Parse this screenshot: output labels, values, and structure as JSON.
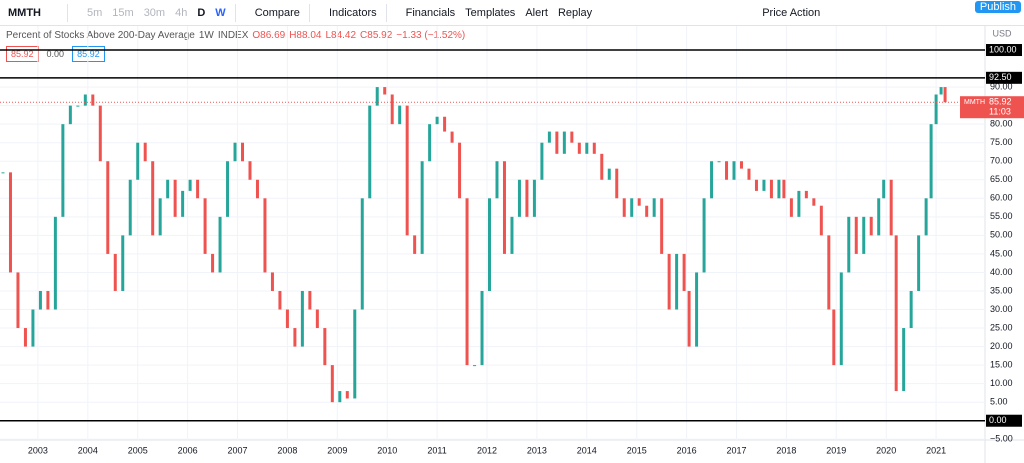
{
  "toolbar": {
    "symbol": "MMTH",
    "intervals": [
      "5m",
      "15m",
      "30m",
      "4h",
      "D",
      "W"
    ],
    "buttons": [
      "Compare",
      "Indicators",
      "Financials",
      "Templates",
      "Alert",
      "Replay",
      "Price Action"
    ],
    "publish": "Publish"
  },
  "legend": {
    "title": "Percent of Stocks Above 200-Day Average",
    "interval": "1W",
    "exchange": "INDEX",
    "ohlc": [
      "O86.69",
      "H88.04",
      "L84.42",
      "C85.92",
      "−1.33 (−1.52%)"
    ],
    "boxes": [
      "85.92",
      "0.00",
      "85.92"
    ]
  },
  "currency": "USD",
  "price_tag": {
    "symbol": "MMTH",
    "value": 85.92,
    "label": "85.92",
    "time": "11:03"
  },
  "hlines": [
    {
      "value": 100,
      "label": "100.00"
    },
    {
      "value": 92.5,
      "label": "92.50"
    },
    {
      "value": 0,
      "label": "0.00"
    }
  ],
  "chart_data": {
    "type": "candles",
    "x": [
      2002.3,
      2002.45,
      2002.6,
      2002.75,
      2002.9,
      2003.05,
      2003.2,
      2003.35,
      2003.5,
      2003.65,
      2003.8,
      2003.95,
      2004.1,
      2004.25,
      2004.4,
      2004.55,
      2004.7,
      2004.85,
      2005.0,
      2005.15,
      2005.3,
      2005.45,
      2005.6,
      2005.75,
      2005.9,
      2006.05,
      2006.2,
      2006.35,
      2006.5,
      2006.65,
      2006.8,
      2006.95,
      2007.1,
      2007.25,
      2007.4,
      2007.55,
      2007.7,
      2007.85,
      2008.0,
      2008.15,
      2008.3,
      2008.45,
      2008.6,
      2008.75,
      2008.9,
      2009.05,
      2009.2,
      2009.35,
      2009.5,
      2009.65,
      2009.8,
      2009.95,
      2010.1,
      2010.25,
      2010.4,
      2010.55,
      2010.7,
      2010.85,
      2011.0,
      2011.15,
      2011.3,
      2011.45,
      2011.6,
      2011.75,
      2011.9,
      2012.05,
      2012.2,
      2012.35,
      2012.5,
      2012.65,
      2012.8,
      2012.95,
      2013.1,
      2013.25,
      2013.4,
      2013.55,
      2013.7,
      2013.85,
      2014.0,
      2014.15,
      2014.3,
      2014.45,
      2014.6,
      2014.75,
      2014.9,
      2015.05,
      2015.2,
      2015.35,
      2015.5,
      2015.65,
      2015.8,
      2015.95,
      2016.05,
      2016.2,
      2016.35,
      2016.5,
      2016.65,
      2016.8,
      2016.95,
      2017.1,
      2017.25,
      2017.4,
      2017.55,
      2017.7,
      2017.85,
      2017.95,
      2018.1,
      2018.25,
      2018.4,
      2018.55,
      2018.7,
      2018.85,
      2018.95,
      2019.1,
      2019.25,
      2019.4,
      2019.55,
      2019.7,
      2019.85,
      2019.95,
      2020.1,
      2020.2,
      2020.35,
      2020.5,
      2020.65,
      2020.8,
      2020.9,
      2021.0,
      2021.1,
      2021.18
    ],
    "series": [
      {
        "name": "MMTH",
        "values": [
          67,
          40,
          25,
          20,
          30,
          35,
          30,
          55,
          80,
          85,
          85,
          88,
          85,
          70,
          45,
          35,
          50,
          65,
          75,
          70,
          50,
          60,
          65,
          55,
          62,
          65,
          60,
          45,
          40,
          55,
          70,
          75,
          70,
          65,
          60,
          40,
          35,
          30,
          25,
          20,
          35,
          30,
          25,
          15,
          5,
          8,
          6,
          30,
          60,
          85,
          90,
          88,
          80,
          85,
          50,
          45,
          70,
          80,
          82,
          78,
          75,
          60,
          15,
          15,
          35,
          60,
          70,
          45,
          55,
          65,
          55,
          65,
          75,
          78,
          72,
          78,
          75,
          72,
          75,
          72,
          65,
          68,
          60,
          55,
          60,
          58,
          55,
          60,
          45,
          30,
          45,
          35,
          20,
          40,
          60,
          70,
          70,
          65,
          70,
          68,
          65,
          62,
          65,
          60,
          65,
          60,
          55,
          62,
          60,
          58,
          50,
          30,
          15,
          40,
          55,
          45,
          55,
          50,
          60,
          65,
          50,
          8,
          25,
          35,
          50,
          60,
          80,
          88,
          90,
          85.92
        ]
      }
    ],
    "up_color": "#26a69a",
    "down_color": "#ef5350",
    "xlim": [
      2002.24,
      2021.98
    ],
    "xticks": [
      2003,
      2004,
      2005,
      2006,
      2007,
      2008,
      2009,
      2010,
      2011,
      2012,
      2013,
      2014,
      2015,
      2016,
      2017,
      2018,
      2019,
      2020,
      2021
    ],
    "ylim": [
      -5.2,
      105.4
    ],
    "yticks": [
      {
        "value": -5,
        "label": "−5.00"
      },
      {
        "value": 5,
        "label": "5.00"
      },
      {
        "value": 10,
        "label": "10.00"
      },
      {
        "value": 15,
        "label": "15.00"
      },
      {
        "value": 20,
        "label": "20.00"
      },
      {
        "value": 25,
        "label": "25.00"
      },
      {
        "value": 30,
        "label": "30.00"
      },
      {
        "value": 35,
        "label": "35.00"
      },
      {
        "value": 40,
        "label": "40.00"
      },
      {
        "value": 45,
        "label": "45.00"
      },
      {
        "value": 50,
        "label": "50.00"
      },
      {
        "value": 55,
        "label": "55.00"
      },
      {
        "value": 60,
        "label": "60.00"
      },
      {
        "value": 65,
        "label": "65.00"
      },
      {
        "value": 70,
        "label": "70.00"
      },
      {
        "value": 75,
        "label": "75.00"
      },
      {
        "value": 80,
        "label": "80.00"
      },
      {
        "value": 85,
        "label": "85.00"
      },
      {
        "value": 90,
        "label": "90.00"
      }
    ],
    "grid": true
  }
}
